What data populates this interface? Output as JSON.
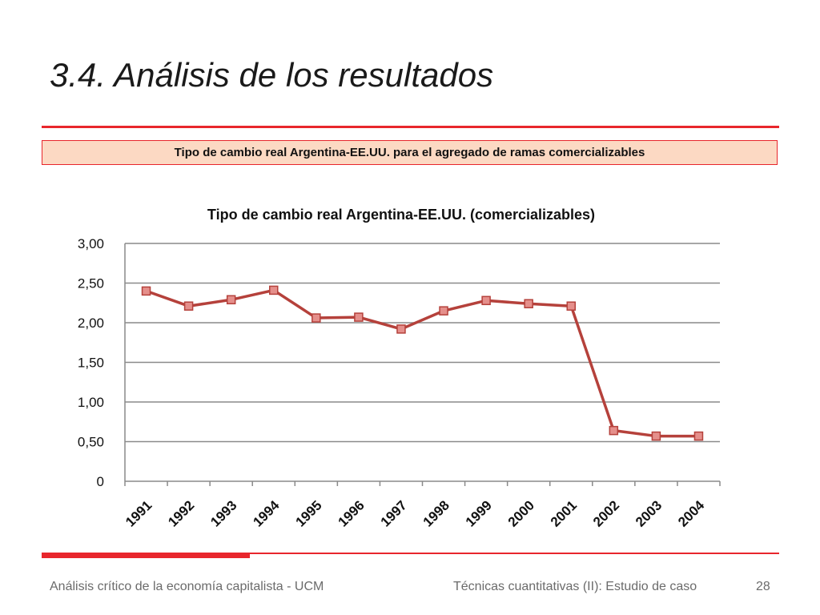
{
  "slide": {
    "title": "3.4.  Análisis de los resultados",
    "caption": "Tipo de cambio real Argentina-EE.UU. para el agregado de ramas comercializables",
    "footer_left": "Análisis crítico de la economía capitalista - UCM",
    "footer_center": "Técnicas cuantitativas (II): Estudio de caso",
    "page_number": "28"
  },
  "chart_data": {
    "type": "line",
    "title": "Tipo de cambio real Argentina-EE.UU. (comercializables)",
    "xlabel": "",
    "ylabel": "",
    "categories": [
      "1991",
      "1992",
      "1993",
      "1994",
      "1995",
      "1996",
      "1997",
      "1998",
      "1999",
      "2000",
      "2001",
      "2002",
      "2003",
      "2004"
    ],
    "series": [
      {
        "values": [
          2.4,
          2.21,
          2.29,
          2.41,
          2.06,
          2.07,
          1.92,
          2.15,
          2.28,
          2.24,
          2.21,
          0.64,
          0.57,
          0.57
        ]
      }
    ],
    "ylim": [
      0,
      3
    ],
    "yticks": [
      0,
      0.5,
      1,
      1.5,
      2,
      2.5,
      3
    ],
    "ytick_labels": [
      "0",
      "0,50",
      "1,00",
      "1,50",
      "2,00",
      "2,50",
      "3,00"
    ],
    "grid": true,
    "legend": "none",
    "line_color": "#b5413b",
    "marker_fill": "#e58f8b",
    "grid_color": "#8a8a8a"
  }
}
